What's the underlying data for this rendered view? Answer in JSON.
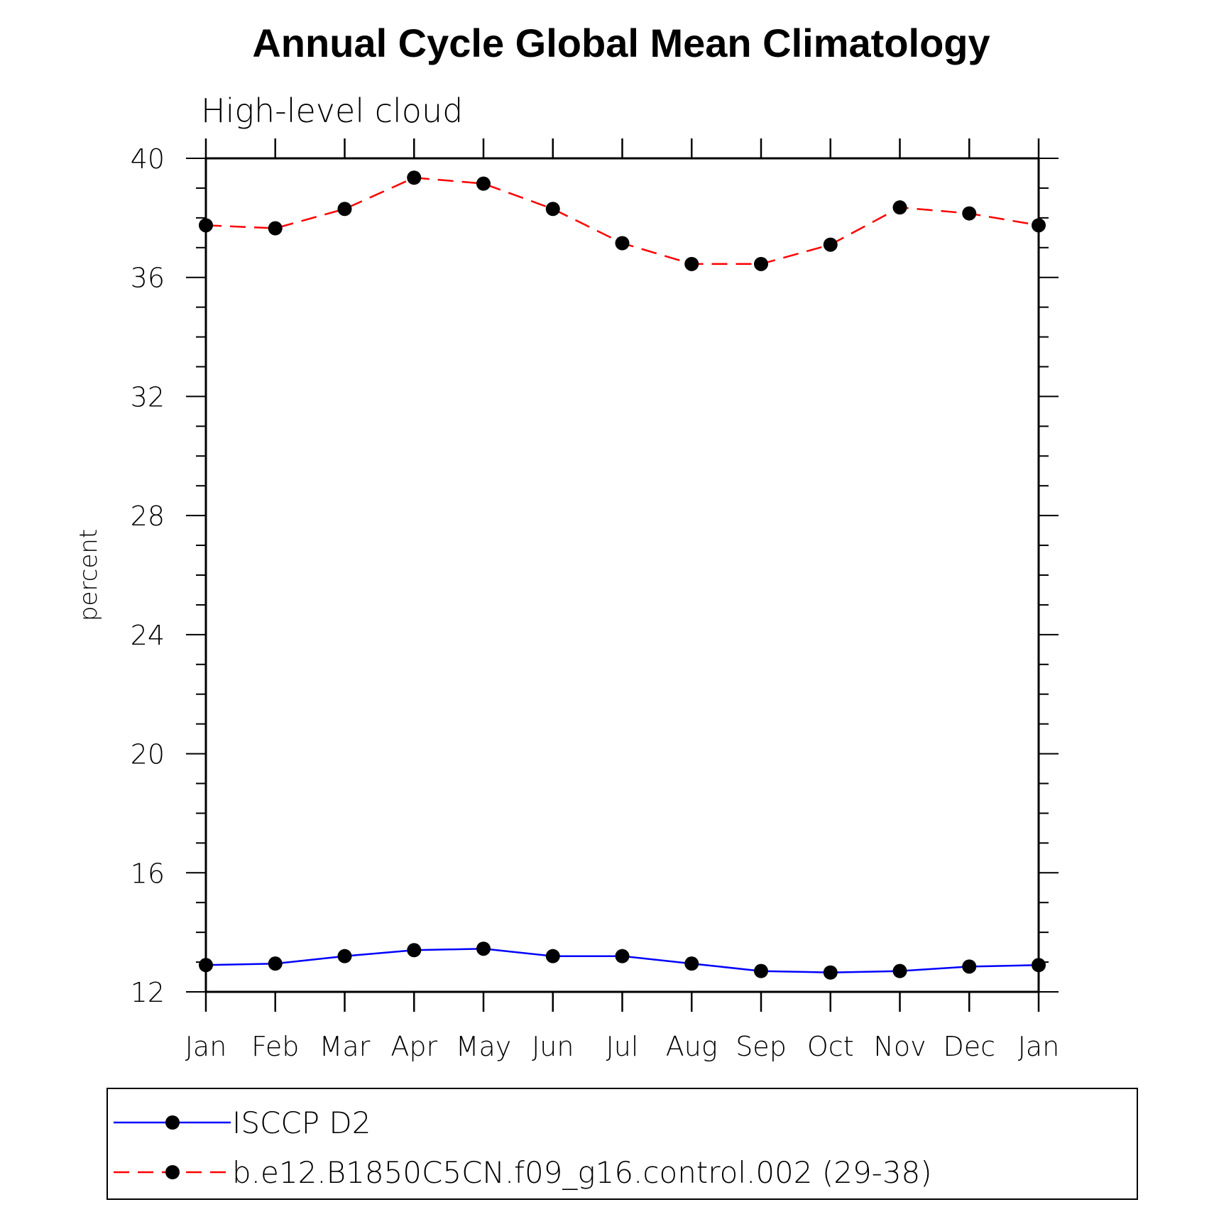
{
  "chart_data": {
    "type": "line",
    "title": "Annual Cycle Global Mean Climatology",
    "subtitle": "High-level cloud",
    "xlabel": "",
    "ylabel": "percent",
    "ylim": [
      12,
      40
    ],
    "y_ticks": [
      "12",
      "16",
      "20",
      "24",
      "28",
      "32",
      "36",
      "40"
    ],
    "categories": [
      "Jan",
      "Feb",
      "Mar",
      "Apr",
      "May",
      "Jun",
      "Jul",
      "Aug",
      "Sep",
      "Oct",
      "Nov",
      "Dec",
      "Jan"
    ],
    "series": [
      {
        "name": "ISCCP D2",
        "color": "#0000ff",
        "dash": "solid",
        "values": [
          12.9,
          12.95,
          13.2,
          13.4,
          13.45,
          13.2,
          13.2,
          12.95,
          12.7,
          12.65,
          12.7,
          12.85,
          12.9
        ]
      },
      {
        "name": "b.e12.B1850C5CN.f09_g16.control.002 (29-38)",
        "color": "#ff0000",
        "dash": "dashed",
        "values": [
          37.75,
          37.65,
          38.3,
          39.35,
          39.15,
          38.3,
          37.15,
          36.45,
          36.45,
          37.1,
          38.35,
          38.15,
          37.75
        ]
      }
    ],
    "grid": false,
    "legend_position": "bottom"
  }
}
